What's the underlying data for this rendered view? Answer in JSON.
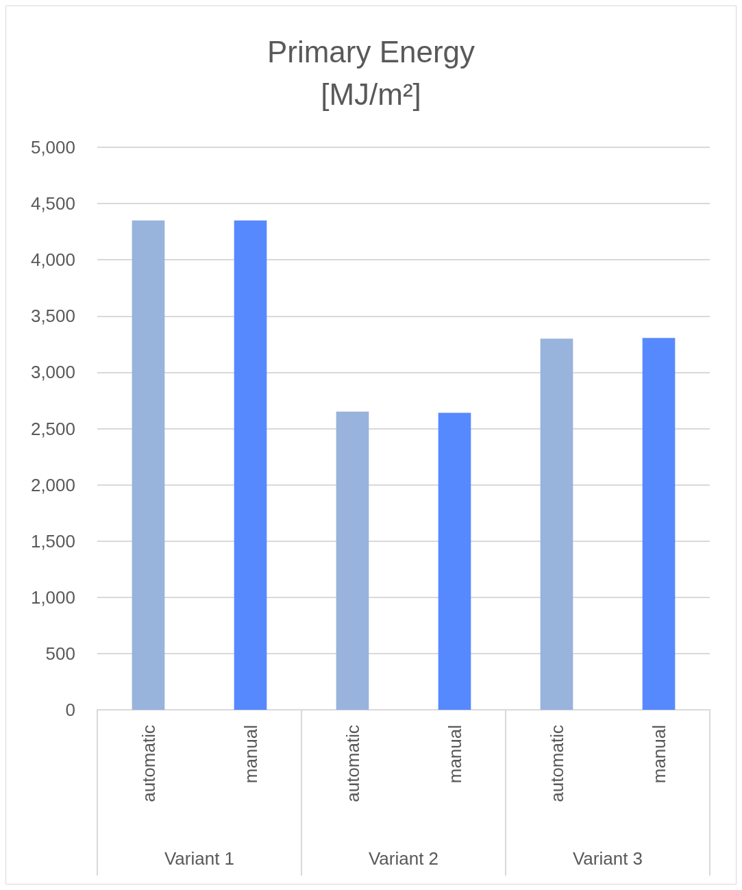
{
  "chart_data": {
    "type": "bar",
    "title": "Primary Energy\n[MJ/m²]",
    "categories": [
      "automatic",
      "manual",
      "automatic",
      "manual",
      "automatic",
      "manual"
    ],
    "values": [
      4350,
      4350,
      2650,
      2640,
      3300,
      3305
    ],
    "colors": [
      "#98b3dc",
      "#5789fe",
      "#98b3dc",
      "#5789fe",
      "#98b3dc",
      "#5789fe"
    ],
    "annotations": [
      "Variant 1",
      "Variant 2",
      "Variant 3"
    ],
    "ylim": [
      0,
      5000
    ],
    "yticks": [
      0,
      500,
      {
        "value": 1000,
        "label": "1,000"
      },
      {
        "value": 1500,
        "label": "1,500"
      },
      {
        "value": 2000,
        "label": "2,000"
      },
      {
        "value": 2500,
        "label": "2,500"
      },
      {
        "value": 3000,
        "label": "3,000"
      },
      {
        "value": 3500,
        "label": "3,500"
      },
      {
        "value": 4000,
        "label": "4,000"
      },
      {
        "value": 4500,
        "label": "4,500"
      },
      {
        "value": 5000,
        "label": "5,000"
      }
    ],
    "grid": "y"
  }
}
